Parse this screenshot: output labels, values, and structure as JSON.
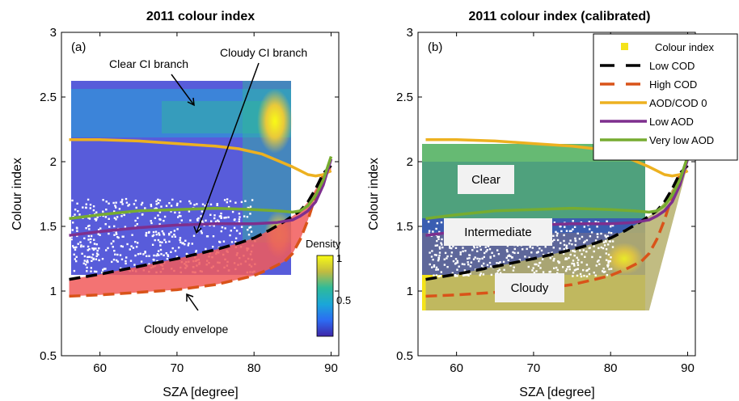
{
  "chart_data": [
    {
      "type": "scatter",
      "title": "2011 colour index",
      "panel_label": "(a)",
      "xlabel": "SZA [degree]",
      "ylabel": "Colour index",
      "xlim": [
        55,
        91
      ],
      "ylim": [
        0.5,
        3
      ],
      "xticks": [
        "60",
        "70",
        "80",
        "90"
      ],
      "yticks": [
        "0.5",
        "1",
        "1.5",
        "2",
        "2.5",
        "3"
      ],
      "grid": false,
      "annotations": [
        "Clear CI branch",
        "Cloudy CI branch",
        "Cloudy envelope"
      ],
      "colorbar": {
        "label": "Density",
        "ticks": [
          "1",
          "0.5"
        ]
      },
      "series": [
        {
          "key": "aod0",
          "x": [
            56,
            60,
            65,
            70,
            75,
            78,
            81,
            83,
            85,
            86,
            87,
            88,
            89,
            90
          ],
          "y": [
            2.17,
            2.17,
            2.16,
            2.14,
            2.12,
            2.1,
            2.06,
            2.01,
            1.96,
            1.93,
            1.9,
            1.89,
            1.9,
            1.93
          ]
        },
        {
          "key": "low_aod",
          "x": [
            56,
            60,
            65,
            70,
            75,
            80,
            83,
            85,
            86,
            87,
            88,
            89,
            90
          ],
          "y": [
            1.43,
            1.46,
            1.49,
            1.51,
            1.52,
            1.52,
            1.53,
            1.55,
            1.58,
            1.62,
            1.69,
            1.82,
            2.02
          ]
        },
        {
          "key": "very_low_aod",
          "x": [
            56,
            60,
            65,
            70,
            75,
            80,
            83,
            85,
            86,
            87,
            88,
            89,
            90
          ],
          "y": [
            1.56,
            1.59,
            1.62,
            1.63,
            1.64,
            1.63,
            1.62,
            1.61,
            1.62,
            1.66,
            1.74,
            1.86,
            2.04
          ]
        },
        {
          "key": "low_cod",
          "x": [
            56,
            60,
            65,
            70,
            75,
            78,
            80,
            82,
            84,
            86,
            87,
            88,
            89,
            90
          ],
          "y": [
            1.09,
            1.13,
            1.19,
            1.25,
            1.32,
            1.37,
            1.41,
            1.47,
            1.54,
            1.62,
            1.69,
            1.79,
            1.91,
            1.97
          ]
        },
        {
          "key": "high_cod",
          "x": [
            56,
            60,
            65,
            70,
            75,
            78,
            80,
            82,
            84,
            85,
            86,
            87,
            88,
            89,
            90
          ],
          "y": [
            0.96,
            0.97,
            0.99,
            1.01,
            1.05,
            1.09,
            1.12,
            1.17,
            1.23,
            1.29,
            1.4,
            1.55,
            1.74,
            1.9,
            1.93
          ]
        }
      ]
    },
    {
      "type": "scatter",
      "title": "2011 colour index (calibrated)",
      "panel_label": "(b)",
      "xlabel": "SZA [degree]",
      "ylabel": "Colour index",
      "xlim": [
        55,
        91
      ],
      "ylim": [
        0.5,
        3
      ],
      "xticks": [
        "60",
        "70",
        "80",
        "90"
      ],
      "yticks": [
        "0.5",
        "1",
        "1.5",
        "2",
        "2.5",
        "3"
      ],
      "grid": false,
      "region_labels": [
        "Clear",
        "Intermediate",
        "Cloudy"
      ],
      "legend": {
        "placement": "top-right",
        "entries": [
          {
            "key": "colour_index",
            "label": "Colour index",
            "color": "#f4e31a"
          },
          {
            "key": "low_cod",
            "label": "Low COD",
            "color": "#000000"
          },
          {
            "key": "high_cod",
            "label": "High COD",
            "color": "#d95319"
          },
          {
            "key": "aod0",
            "label": "AOD/COD 0",
            "color": "#edb120"
          },
          {
            "key": "low_aod",
            "label": "Low AOD",
            "color": "#7e2f8e"
          },
          {
            "key": "very_low_aod",
            "label": "Very low AOD",
            "color": "#77ac30"
          }
        ]
      },
      "series": [
        {
          "key": "aod0",
          "x": [
            56,
            60,
            65,
            70,
            75,
            78,
            81,
            83,
            85,
            86,
            87,
            88,
            89,
            90
          ],
          "y": [
            2.17,
            2.17,
            2.16,
            2.14,
            2.12,
            2.1,
            2.06,
            2.01,
            1.96,
            1.93,
            1.9,
            1.89,
            1.9,
            1.93
          ]
        },
        {
          "key": "low_aod",
          "x": [
            56,
            60,
            65,
            70,
            75,
            80,
            83,
            85,
            86,
            87,
            88,
            89,
            90
          ],
          "y": [
            1.43,
            1.46,
            1.49,
            1.51,
            1.52,
            1.52,
            1.53,
            1.55,
            1.58,
            1.62,
            1.69,
            1.82,
            2.02
          ]
        },
        {
          "key": "very_low_aod",
          "x": [
            56,
            60,
            65,
            70,
            75,
            80,
            83,
            85,
            86,
            87,
            88,
            89,
            90
          ],
          "y": [
            1.56,
            1.59,
            1.62,
            1.63,
            1.64,
            1.63,
            1.62,
            1.61,
            1.62,
            1.66,
            1.74,
            1.86,
            2.04
          ]
        },
        {
          "key": "low_cod",
          "x": [
            56,
            60,
            65,
            70,
            75,
            78,
            80,
            82,
            84,
            86,
            87,
            88,
            89,
            90
          ],
          "y": [
            1.09,
            1.13,
            1.19,
            1.25,
            1.32,
            1.37,
            1.41,
            1.47,
            1.54,
            1.62,
            1.69,
            1.79,
            1.91,
            1.97
          ]
        },
        {
          "key": "high_cod",
          "x": [
            56,
            60,
            65,
            70,
            75,
            78,
            80,
            82,
            84,
            85,
            86,
            87,
            88,
            89,
            90
          ],
          "y": [
            0.96,
            0.97,
            0.99,
            1.01,
            1.05,
            1.09,
            1.12,
            1.17,
            1.23,
            1.29,
            1.4,
            1.55,
            1.74,
            1.9,
            1.93
          ]
        }
      ]
    }
  ],
  "colors": {
    "aod0": "#edb120",
    "low_aod": "#7e2f8e",
    "very_low_aod": "#77ac30",
    "low_cod": "#000000",
    "high_cod": "#d95319",
    "envelope": "#f15a5a",
    "colour_index": "#f4e31a"
  }
}
